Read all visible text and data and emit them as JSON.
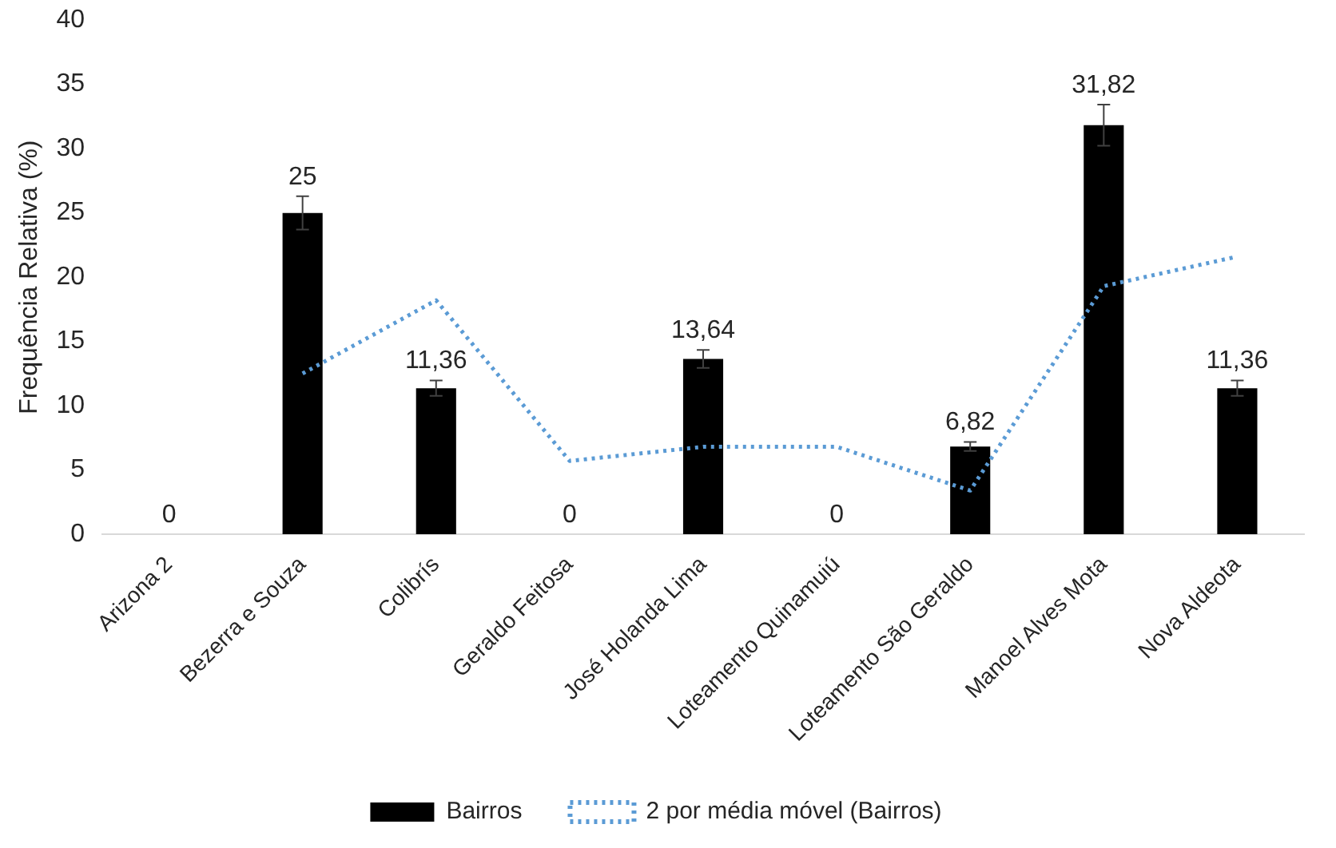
{
  "chart_data": {
    "type": "bar",
    "ylabel": "Frequência Relativa (%)",
    "categories": [
      "Arizona 2",
      "Bezerra e Souza",
      "Colibrís",
      "Geraldo Feitosa",
      "José Holanda Lima",
      "Loteamento Quinamuiú",
      "Loteamento São Geraldo",
      "Manoel Alves Mota",
      "Nova Aldeota"
    ],
    "series": [
      {
        "name": "Bairros",
        "color": "#000000",
        "values": [
          0,
          25,
          11.36,
          0,
          13.64,
          0,
          6.82,
          31.82,
          11.36
        ],
        "errors": [
          null,
          1.3,
          0.6,
          null,
          0.7,
          null,
          0.35,
          1.6,
          0.6
        ],
        "value_labels": [
          "0",
          "25",
          "11,36",
          "0",
          "13,64",
          "0",
          "6,82",
          "31,82",
          "11,36"
        ]
      },
      {
        "name": "2 por média móvel (Bairros)",
        "type": "line",
        "color": "#5b9bd5",
        "line_style": "dotted",
        "marker": "none",
        "values": [
          null,
          12.5,
          18.2,
          5.7,
          6.8,
          6.8,
          3.4,
          19.3,
          21.6
        ]
      }
    ],
    "ylim": [
      0,
      40
    ],
    "yticks": [
      0,
      5,
      10,
      15,
      20,
      25,
      30,
      35,
      40
    ],
    "grid": false,
    "legend": "bottom"
  }
}
